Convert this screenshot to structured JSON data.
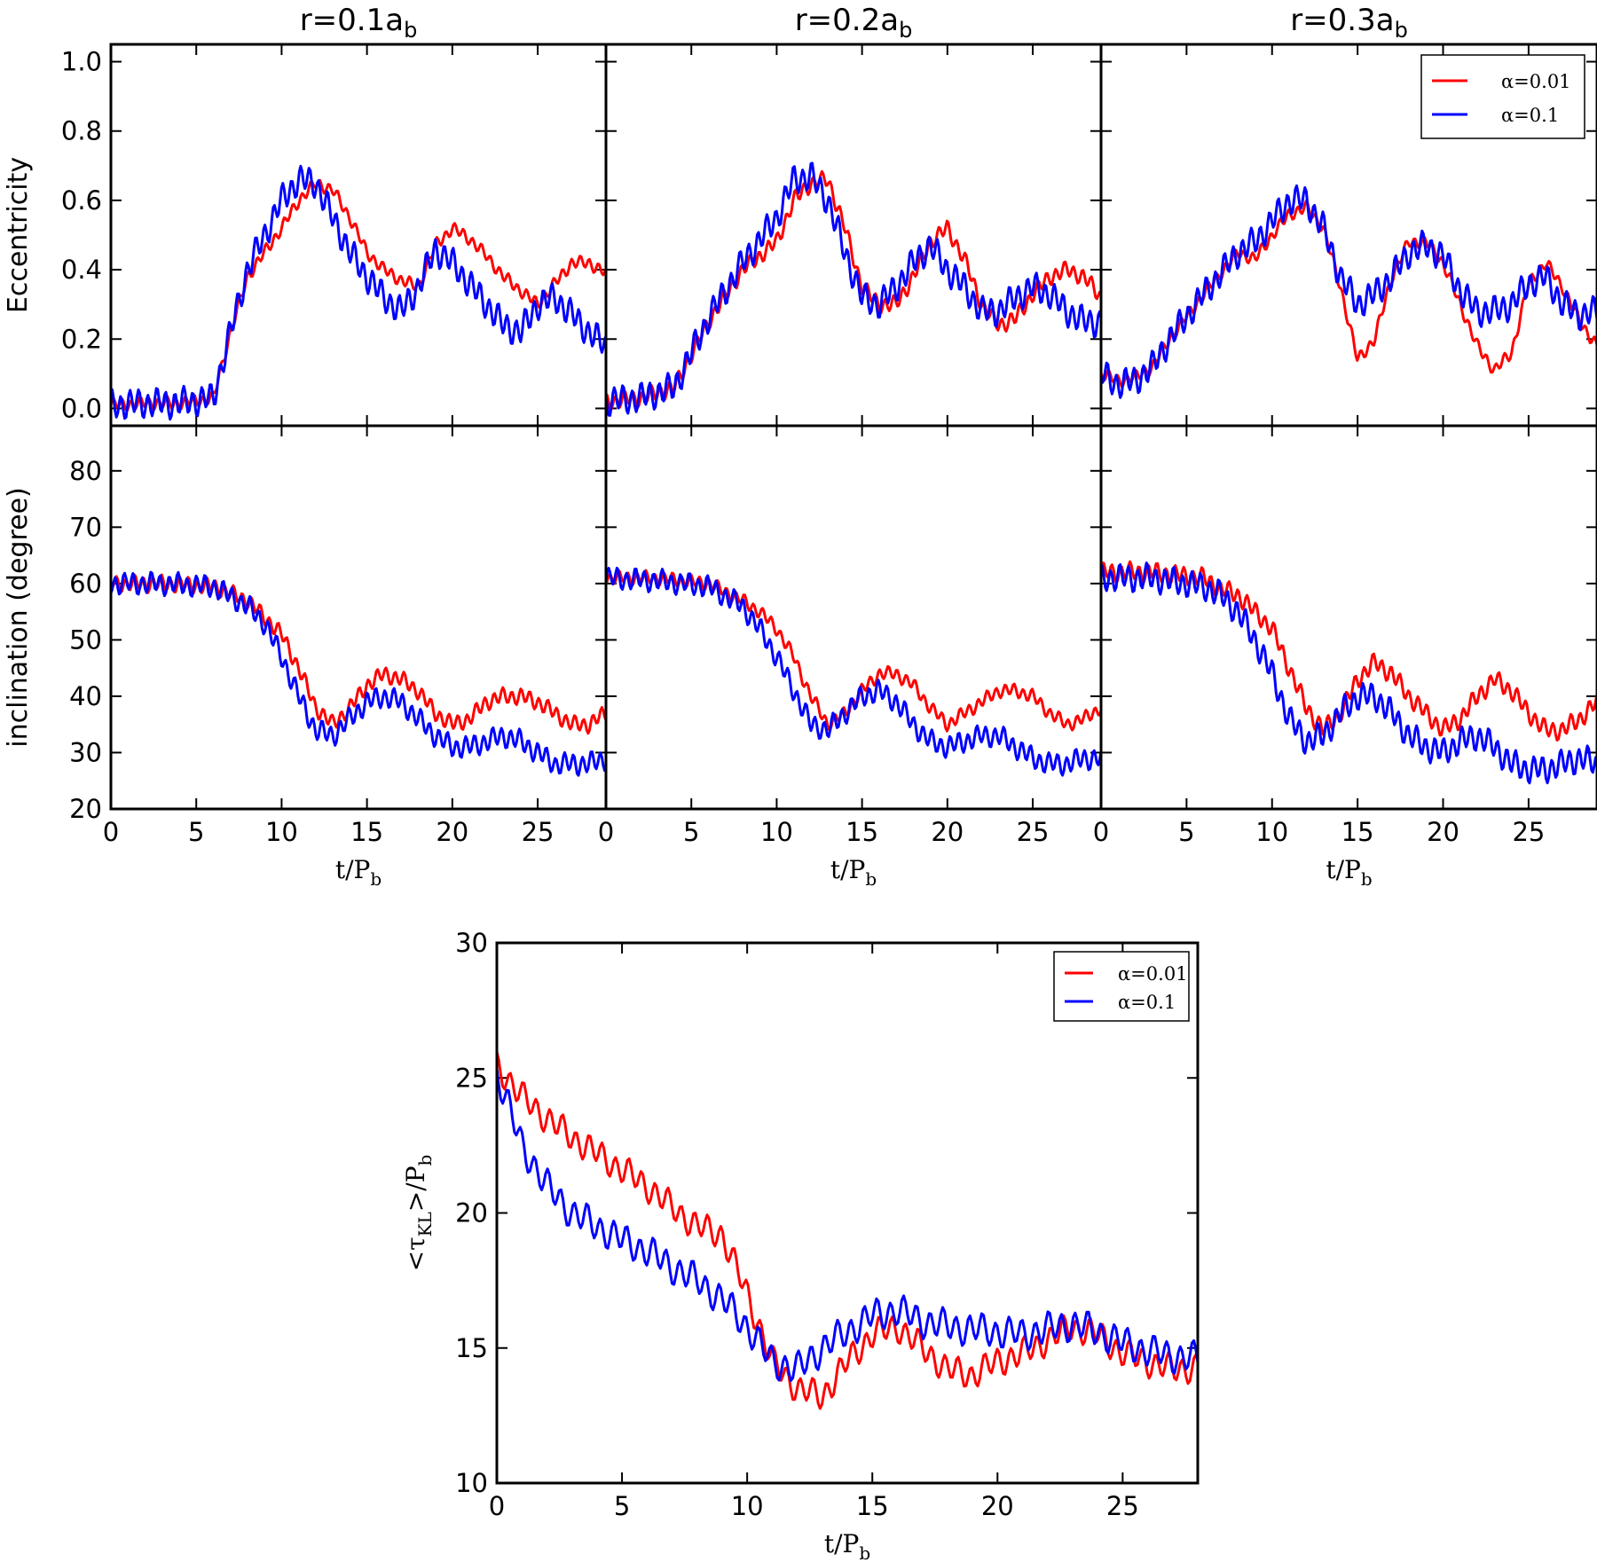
{
  "chart_data": [
    {
      "type": "line",
      "panel": "top-left-eccentricity",
      "title": "r=0.1a",
      "title_sub": "b",
      "ylabel": "Eccentricity",
      "xlim": [
        0,
        29
      ],
      "ylim": [
        -0.05,
        1.05
      ],
      "yticks": [
        "0.0",
        "0.2",
        "0.4",
        "0.6",
        "0.8",
        "1.0"
      ],
      "series": [
        {
          "name": "α=0.01",
          "color": "#ff0000",
          "x": [
            0,
            2,
            4,
            6,
            7,
            8,
            9,
            10,
            11,
            12,
            13,
            14,
            15,
            16,
            17,
            18,
            19,
            20,
            21,
            22,
            23,
            24,
            25,
            26,
            27,
            28,
            29
          ],
          "y": [
            0.01,
            0.015,
            0.015,
            0.03,
            0.22,
            0.38,
            0.45,
            0.52,
            0.6,
            0.65,
            0.63,
            0.55,
            0.45,
            0.4,
            0.37,
            0.35,
            0.47,
            0.52,
            0.49,
            0.44,
            0.38,
            0.34,
            0.3,
            0.36,
            0.42,
            0.42,
            0.39
          ],
          "wiggle": 0.015
        },
        {
          "name": "α=0.1",
          "color": "#0000ff",
          "x": [
            0,
            2,
            4,
            6,
            7,
            8,
            9,
            10,
            11,
            12,
            13,
            14,
            15,
            16,
            17,
            18,
            19,
            20,
            21,
            22,
            23,
            24,
            25,
            26,
            27,
            28,
            29
          ],
          "y": [
            0.01,
            0.015,
            0.015,
            0.03,
            0.22,
            0.4,
            0.5,
            0.6,
            0.66,
            0.65,
            0.55,
            0.45,
            0.38,
            0.32,
            0.28,
            0.35,
            0.46,
            0.42,
            0.36,
            0.3,
            0.24,
            0.22,
            0.3,
            0.32,
            0.27,
            0.22,
            0.18
          ],
          "wiggle": 0.035
        }
      ]
    },
    {
      "type": "line",
      "panel": "top-middle-eccentricity",
      "title": "r=0.2a",
      "title_sub": "b",
      "xlim": [
        0,
        29
      ],
      "ylim": [
        -0.05,
        1.05
      ],
      "series": [
        {
          "name": "α=0.01",
          "color": "#ff0000",
          "x": [
            0,
            2,
            4,
            6,
            8,
            10,
            11,
            12,
            13,
            14,
            15,
            16,
            17,
            18,
            19,
            20,
            21,
            22,
            23,
            24,
            25,
            26,
            27,
            28,
            29
          ],
          "y": [
            0.02,
            0.03,
            0.06,
            0.25,
            0.4,
            0.48,
            0.6,
            0.65,
            0.66,
            0.52,
            0.35,
            0.3,
            0.3,
            0.38,
            0.48,
            0.52,
            0.43,
            0.3,
            0.24,
            0.26,
            0.33,
            0.38,
            0.4,
            0.38,
            0.32
          ],
          "wiggle": 0.02
        },
        {
          "name": "α=0.1",
          "color": "#0000ff",
          "x": [
            0,
            2,
            4,
            6,
            8,
            10,
            11,
            12,
            13,
            14,
            15,
            16,
            17,
            18,
            19,
            20,
            21,
            22,
            23,
            24,
            25,
            26,
            27,
            28,
            29
          ],
          "y": [
            0.02,
            0.03,
            0.06,
            0.26,
            0.42,
            0.55,
            0.66,
            0.67,
            0.6,
            0.45,
            0.32,
            0.3,
            0.35,
            0.42,
            0.47,
            0.4,
            0.35,
            0.28,
            0.28,
            0.32,
            0.35,
            0.33,
            0.28,
            0.25,
            0.25
          ],
          "wiggle": 0.035
        }
      ]
    },
    {
      "type": "line",
      "panel": "top-right-eccentricity",
      "title": "r=0.3a",
      "title_sub": "b",
      "xlim": [
        0,
        29
      ],
      "ylim": [
        -0.05,
        1.05
      ],
      "legend": "top-right",
      "series": [
        {
          "name": "α=0.01",
          "color": "#ff0000",
          "x": [
            0,
            1,
            2,
            3,
            4,
            6,
            8,
            9,
            10,
            11,
            12,
            13,
            14,
            15,
            16,
            17,
            18,
            19,
            20,
            21,
            22,
            23,
            24,
            25,
            26,
            27,
            28,
            29
          ],
          "y": [
            0.1,
            0.08,
            0.09,
            0.12,
            0.2,
            0.33,
            0.45,
            0.43,
            0.5,
            0.56,
            0.58,
            0.52,
            0.35,
            0.14,
            0.2,
            0.38,
            0.48,
            0.48,
            0.42,
            0.3,
            0.18,
            0.11,
            0.16,
            0.36,
            0.42,
            0.35,
            0.25,
            0.18
          ],
          "wiggle": 0.015
        },
        {
          "name": "α=0.1",
          "color": "#0000ff",
          "x": [
            0,
            1,
            2,
            3,
            4,
            6,
            8,
            9,
            10,
            11,
            12,
            13,
            14,
            15,
            16,
            17,
            18,
            19,
            20,
            21,
            22,
            23,
            24,
            25,
            26,
            27,
            28,
            29
          ],
          "y": [
            0.1,
            0.07,
            0.08,
            0.12,
            0.2,
            0.33,
            0.45,
            0.48,
            0.54,
            0.6,
            0.6,
            0.52,
            0.38,
            0.3,
            0.33,
            0.38,
            0.45,
            0.47,
            0.44,
            0.34,
            0.28,
            0.28,
            0.3,
            0.36,
            0.38,
            0.3,
            0.27,
            0.28
          ],
          "wiggle": 0.035
        }
      ]
    },
    {
      "type": "line",
      "panel": "bottom-left-inclination",
      "ylabel": "inclination (degree)",
      "xlabel": "t/P",
      "xlabel_sub": "b",
      "xlim": [
        0,
        29
      ],
      "ylim": [
        20,
        88
      ],
      "xticks": [
        "0",
        "5",
        "10",
        "15",
        "20",
        "25"
      ],
      "yticks": [
        "20",
        "30",
        "40",
        "50",
        "60",
        "70",
        "80"
      ],
      "series": [
        {
          "name": "α=0.01",
          "color": "#ff0000",
          "x": [
            0,
            3,
            6,
            8,
            9,
            10,
            11,
            12,
            13,
            14,
            15,
            16,
            17,
            18,
            19,
            20,
            21,
            22,
            23,
            24,
            25,
            26,
            27,
            28,
            29
          ],
          "y": [
            60,
            60,
            59.5,
            57,
            54,
            51,
            45,
            38,
            35,
            38,
            42,
            44,
            43,
            41,
            37,
            35,
            36,
            39,
            40,
            40,
            39,
            37,
            35,
            35,
            37
          ],
          "wiggle": 1.2
        },
        {
          "name": "α=0.1",
          "color": "#0000ff",
          "x": [
            0,
            3,
            6,
            8,
            9,
            10,
            11,
            12,
            13,
            14,
            15,
            16,
            17,
            18,
            19,
            20,
            21,
            22,
            23,
            24,
            25,
            26,
            27,
            28,
            29
          ],
          "y": [
            60,
            60,
            59.5,
            56,
            53,
            47,
            40,
            34,
            33,
            36,
            39,
            40,
            39,
            36,
            33,
            31,
            31,
            32,
            33,
            32,
            30,
            28,
            28,
            28,
            29
          ],
          "wiggle": 1.6
        }
      ]
    },
    {
      "type": "line",
      "panel": "bottom-middle-inclination",
      "xlabel": "t/P",
      "xlabel_sub": "b",
      "xlim": [
        0,
        29
      ],
      "ylim": [
        20,
        88
      ],
      "xticks": [
        "0",
        "5",
        "10",
        "15",
        "20",
        "25"
      ],
      "series": [
        {
          "name": "α=0.01",
          "color": "#ff0000",
          "x": [
            0,
            3,
            6,
            8,
            9,
            10,
            11,
            12,
            13,
            14,
            15,
            16,
            17,
            18,
            19,
            20,
            21,
            22,
            23,
            24,
            25,
            26,
            27,
            28,
            29
          ],
          "y": [
            61,
            61,
            60,
            57,
            55,
            52,
            47,
            40,
            35,
            37,
            41,
            44,
            44,
            42,
            38,
            35,
            37,
            39,
            41,
            41,
            40,
            37,
            35,
            36,
            38
          ],
          "wiggle": 1.0
        },
        {
          "name": "α=0.1",
          "color": "#0000ff",
          "x": [
            0,
            3,
            6,
            8,
            9,
            10,
            11,
            12,
            13,
            14,
            15,
            16,
            17,
            18,
            19,
            20,
            21,
            22,
            23,
            24,
            25,
            26,
            27,
            28,
            29
          ],
          "y": [
            61,
            60.5,
            59.5,
            56,
            52,
            47,
            41,
            35,
            34,
            37,
            40,
            41,
            39,
            35,
            32,
            31,
            32,
            33,
            33,
            31,
            29,
            28,
            28,
            29,
            29
          ],
          "wiggle": 1.6
        }
      ]
    },
    {
      "type": "line",
      "panel": "bottom-right-inclination",
      "xlabel": "t/P",
      "xlabel_sub": "b",
      "xlim": [
        0,
        29
      ],
      "ylim": [
        20,
        88
      ],
      "xticks": [
        "0",
        "5",
        "10",
        "15",
        "20",
        "25"
      ],
      "series": [
        {
          "name": "α=0.01",
          "color": "#ff0000",
          "x": [
            0,
            3,
            6,
            7,
            8,
            9,
            10,
            11,
            12,
            13,
            14,
            15,
            16,
            17,
            18,
            19,
            20,
            21,
            22,
            23,
            24,
            25,
            26,
            27,
            28,
            29
          ],
          "y": [
            62,
            62,
            61,
            59,
            58,
            55,
            52,
            45,
            38,
            34,
            37,
            43,
            46,
            44,
            40,
            37,
            34,
            36,
            40,
            43,
            41,
            37,
            34,
            34,
            36,
            39
          ],
          "wiggle": 1.4
        },
        {
          "name": "α=0.1",
          "color": "#0000ff",
          "x": [
            0,
            3,
            6,
            7,
            8,
            9,
            10,
            11,
            12,
            13,
            14,
            15,
            16,
            17,
            18,
            19,
            20,
            21,
            22,
            23,
            24,
            25,
            26,
            27,
            28,
            29
          ],
          "y": [
            61,
            61,
            59.5,
            58,
            55,
            50,
            44,
            36,
            32,
            33,
            37,
            40,
            40,
            37,
            33,
            31,
            30,
            32,
            33,
            31,
            28,
            27,
            27,
            28,
            29,
            28
          ],
          "wiggle": 2.0
        }
      ]
    },
    {
      "type": "line",
      "panel": "bottom-center-tau",
      "ylabel_parts": [
        "<τ",
        "KL",
        ">/P",
        "b"
      ],
      "xlabel": "t/P",
      "xlabel_sub": "b",
      "xlim": [
        0,
        28
      ],
      "ylim": [
        10,
        30
      ],
      "xticks": [
        "0",
        "5",
        "10",
        "15",
        "20",
        "25"
      ],
      "yticks": [
        "10",
        "15",
        "20",
        "25",
        "30"
      ],
      "legend": "top-right",
      "series": [
        {
          "name": "α=0.01",
          "color": "#ff0000",
          "x": [
            0,
            1,
            2,
            3,
            4,
            5,
            6,
            7,
            8,
            9,
            10,
            11,
            12,
            13,
            14,
            15,
            16,
            17,
            18,
            19,
            20,
            21,
            22,
            23,
            24,
            25,
            26,
            27,
            28
          ],
          "y": [
            25.5,
            24.3,
            23.5,
            22.8,
            22.2,
            21.6,
            21.0,
            20.2,
            19.5,
            19.2,
            17.0,
            14.5,
            13.5,
            13.2,
            14.5,
            15.5,
            15.8,
            15.0,
            14.2,
            14.0,
            14.5,
            14.8,
            15.3,
            15.8,
            15.5,
            14.8,
            14.5,
            14.2,
            14.3
          ],
          "wiggle": 0.45
        },
        {
          "name": "α=0.1",
          "color": "#0000ff",
          "x": [
            0,
            1,
            2,
            3,
            4,
            5,
            6,
            7,
            8,
            9,
            10,
            11,
            12,
            13,
            14,
            15,
            16,
            17,
            18,
            19,
            20,
            21,
            22,
            23,
            24,
            25,
            26,
            27,
            28
          ],
          "y": [
            25.2,
            22.5,
            21.0,
            20.0,
            19.5,
            19.0,
            18.6,
            18.0,
            17.5,
            16.8,
            15.8,
            14.5,
            14.2,
            15.0,
            15.6,
            16.2,
            16.4,
            16.0,
            15.8,
            15.7,
            15.6,
            15.5,
            15.7,
            15.9,
            15.6,
            15.2,
            14.9,
            14.7,
            14.6
          ],
          "wiggle": 0.5
        }
      ]
    }
  ]
}
